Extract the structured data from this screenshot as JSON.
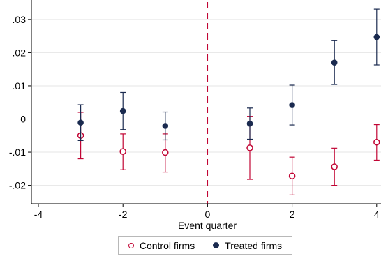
{
  "chart_data": {
    "type": "scatter",
    "title": "",
    "xlabel": "Event quarter",
    "ylabel": "",
    "xlim": [
      -4,
      4
    ],
    "ylim": [
      -0.025,
      0.035
    ],
    "x_ticks": [
      -4,
      -2,
      0,
      2,
      4
    ],
    "x_tick_labels": [
      "-4",
      "-2",
      "0",
      "2",
      "4"
    ],
    "y_ticks": [
      -0.02,
      -0.01,
      0,
      0.01,
      0.02,
      0.03
    ],
    "y_tick_labels": [
      "-.02",
      "-.01",
      "0",
      ".01",
      ".02",
      ".03"
    ],
    "grid": "horizontal",
    "reference_line": {
      "x": 0,
      "style": "dashed",
      "color": "#c10534"
    },
    "legend_position": "bottom",
    "series": [
      {
        "name": "Control firms",
        "marker": "hollow-circle",
        "color": "#c10534",
        "points": [
          {
            "x": -3,
            "y": -0.005,
            "lo": -0.012,
            "hi": 0.002
          },
          {
            "x": -2,
            "y": -0.0098,
            "lo": -0.0153,
            "hi": -0.0045
          },
          {
            "x": -1,
            "y": -0.0101,
            "lo": -0.016,
            "hi": -0.0045
          },
          {
            "x": 1,
            "y": -0.0087,
            "lo": -0.0182,
            "hi": 0.0008
          },
          {
            "x": 2,
            "y": -0.0172,
            "lo": -0.0229,
            "hi": -0.0115
          },
          {
            "x": 3,
            "y": -0.0144,
            "lo": -0.02,
            "hi": -0.0088
          },
          {
            "x": 4,
            "y": -0.007,
            "lo": -0.0124,
            "hi": -0.0017
          }
        ]
      },
      {
        "name": "Treated firms",
        "marker": "solid-circle",
        "color": "#1a2a4f",
        "points": [
          {
            "x": -3,
            "y": -0.0011,
            "lo": -0.0065,
            "hi": 0.0043
          },
          {
            "x": -2,
            "y": 0.0024,
            "lo": -0.0032,
            "hi": 0.008
          },
          {
            "x": -1,
            "y": -0.0021,
            "lo": -0.0063,
            "hi": 0.0021
          },
          {
            "x": 1,
            "y": -0.0014,
            "lo": -0.0061,
            "hi": 0.0033
          },
          {
            "x": 2,
            "y": 0.0042,
            "lo": -0.0018,
            "hi": 0.0102
          },
          {
            "x": 3,
            "y": 0.017,
            "lo": 0.0104,
            "hi": 0.0236
          },
          {
            "x": 4,
            "y": 0.0247,
            "lo": 0.0163,
            "hi": 0.0331
          }
        ]
      }
    ]
  }
}
